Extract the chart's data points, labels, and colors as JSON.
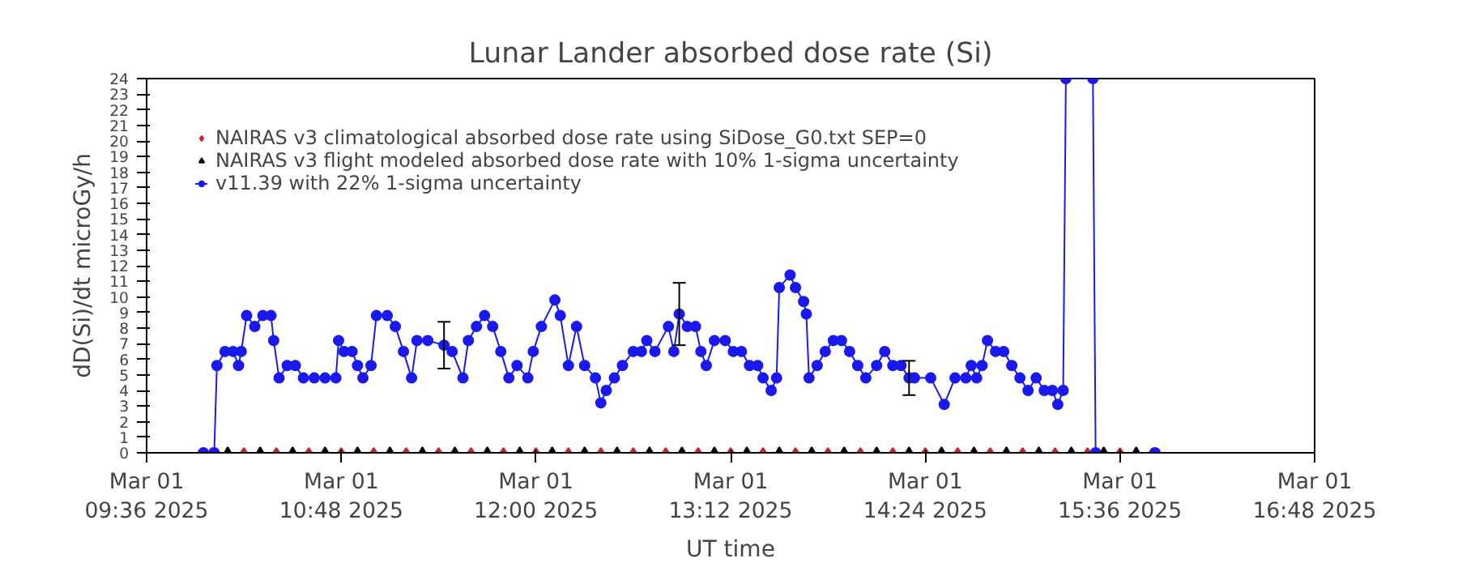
{
  "chart_data": {
    "type": "line",
    "title": "Lunar Lander absorbed dose rate (Si)",
    "xlabel": "UT time",
    "ylabel": "dD(Si)/dt microGy/h",
    "xlim": [
      "2025-03-01T09:36",
      "2025-03-01T16:48"
    ],
    "xticks": [
      {
        "value": "2025-03-01T09:36",
        "label": "Mar 01\n09:36 2025"
      },
      {
        "value": "2025-03-01T10:48",
        "label": "Mar 01\n10:48 2025"
      },
      {
        "value": "2025-03-01T12:00",
        "label": "Mar 01\n12:00 2025"
      },
      {
        "value": "2025-03-01T13:12",
        "label": "Mar 01\n13:12 2025"
      },
      {
        "value": "2025-03-01T14:24",
        "label": "Mar 01\n14:24 2025"
      },
      {
        "value": "2025-03-01T15:36",
        "label": "Mar 01\n15:36 2025"
      },
      {
        "value": "2025-03-01T16:48",
        "label": "Mar 01\n16:48 2025"
      }
    ],
    "ylim": [
      0,
      24
    ],
    "yticks": [
      0,
      1,
      2,
      3,
      4,
      5,
      6,
      7,
      8,
      9,
      10,
      11,
      12,
      13,
      14,
      15,
      16,
      17,
      18,
      19,
      20,
      21,
      22,
      23,
      24
    ],
    "grid": false,
    "legend": "top left",
    "line_style": "solid",
    "series": [
      {
        "name": "NAIRAS v3 climatological absorbed dose rate using SiDose_G0.txt SEP=0",
        "type": "scatter",
        "color": "#cc2222",
        "marker": "diamond",
        "x": [
          "2025-03-01T10:00",
          "2025-03-01T10:12",
          "2025-03-01T10:24",
          "2025-03-01T10:36",
          "2025-03-01T10:48",
          "2025-03-01T11:00",
          "2025-03-01T11:12",
          "2025-03-01T11:24",
          "2025-03-01T11:36",
          "2025-03-01T11:48",
          "2025-03-01T12:00",
          "2025-03-01T12:12",
          "2025-03-01T12:24",
          "2025-03-01T12:36",
          "2025-03-01T12:48",
          "2025-03-01T13:00",
          "2025-03-01T13:12",
          "2025-03-01T13:24",
          "2025-03-01T13:36",
          "2025-03-01T13:48",
          "2025-03-01T14:00",
          "2025-03-01T14:12",
          "2025-03-01T14:24",
          "2025-03-01T14:36",
          "2025-03-01T14:48",
          "2025-03-01T15:00",
          "2025-03-01T15:12",
          "2025-03-01T15:24",
          "2025-03-01T15:36",
          "2025-03-01T15:48"
        ],
        "values": [
          0,
          0,
          0,
          0,
          0,
          0,
          0,
          0,
          0,
          0,
          0,
          0,
          0,
          0,
          0,
          0,
          0,
          0,
          0,
          0,
          0,
          0,
          0,
          0,
          0,
          0,
          0,
          0,
          0,
          0
        ]
      },
      {
        "name": "NAIRAS v3 flight modeled absorbed dose rate with 10% 1-sigma uncertainty",
        "type": "scatter",
        "color": "#000000",
        "marker": "triangle",
        "x": [
          "2025-03-01T10:06",
          "2025-03-01T10:18",
          "2025-03-01T10:30",
          "2025-03-01T10:42",
          "2025-03-01T10:54",
          "2025-03-01T11:06",
          "2025-03-01T11:18",
          "2025-03-01T11:30",
          "2025-03-01T11:42",
          "2025-03-01T11:54",
          "2025-03-01T12:06",
          "2025-03-01T12:18",
          "2025-03-01T12:30",
          "2025-03-01T12:42",
          "2025-03-01T12:54",
          "2025-03-01T13:06",
          "2025-03-01T13:18",
          "2025-03-01T13:30",
          "2025-03-01T13:42",
          "2025-03-01T13:54",
          "2025-03-01T14:06",
          "2025-03-01T14:18",
          "2025-03-01T14:30",
          "2025-03-01T14:42",
          "2025-03-01T14:54",
          "2025-03-01T15:06",
          "2025-03-01T15:18",
          "2025-03-01T15:30",
          "2025-03-01T15:42"
        ],
        "values": [
          0,
          0,
          0,
          0,
          0,
          0,
          0,
          0,
          0,
          0,
          0,
          0,
          0,
          0,
          0,
          0,
          0,
          0,
          0,
          0,
          0,
          0,
          0,
          0,
          0,
          0,
          0,
          0,
          0
        ]
      },
      {
        "name": "v11.39 with 22% 1-sigma uncertainty",
        "color": "#1a1aee",
        "marker": "circle",
        "x": [
          "2025-03-01T09:57",
          "2025-03-01T10:01",
          "2025-03-01T10:02",
          "2025-03-01T10:05",
          "2025-03-01T10:08",
          "2025-03-01T10:10",
          "2025-03-01T10:11",
          "2025-03-01T10:13",
          "2025-03-01T10:16",
          "2025-03-01T10:19",
          "2025-03-01T10:22",
          "2025-03-01T10:23",
          "2025-03-01T10:25",
          "2025-03-01T10:28",
          "2025-03-01T10:31",
          "2025-03-01T10:34",
          "2025-03-01T10:38",
          "2025-03-01T10:42",
          "2025-03-01T10:46",
          "2025-03-01T10:47",
          "2025-03-01T10:49",
          "2025-03-01T10:52",
          "2025-03-01T10:54",
          "2025-03-01T10:56",
          "2025-03-01T10:59",
          "2025-03-01T11:01",
          "2025-03-01T11:05",
          "2025-03-01T11:08",
          "2025-03-01T11:11",
          "2025-03-01T11:14",
          "2025-03-01T11:16",
          "2025-03-01T11:20",
          "2025-03-01T11:26",
          "2025-03-01T11:29",
          "2025-03-01T11:33",
          "2025-03-01T11:35",
          "2025-03-01T11:38",
          "2025-03-01T11:41",
          "2025-03-01T11:44",
          "2025-03-01T11:47",
          "2025-03-01T11:50",
          "2025-03-01T11:53",
          "2025-03-01T11:57",
          "2025-03-01T11:59",
          "2025-03-01T12:02",
          "2025-03-01T12:07",
          "2025-03-01T12:09",
          "2025-03-01T12:12",
          "2025-03-01T12:15",
          "2025-03-01T12:18",
          "2025-03-01T12:22",
          "2025-03-01T12:24",
          "2025-03-01T12:26",
          "2025-03-01T12:29",
          "2025-03-01T12:32",
          "2025-03-01T12:36",
          "2025-03-01T12:39",
          "2025-03-01T12:41",
          "2025-03-01T12:44",
          "2025-03-01T12:49",
          "2025-03-01T12:51",
          "2025-03-01T12:53",
          "2025-03-01T12:56",
          "2025-03-01T12:59",
          "2025-03-01T13:01",
          "2025-03-01T13:03",
          "2025-03-01T13:06",
          "2025-03-01T13:10",
          "2025-03-01T13:13",
          "2025-03-01T13:16",
          "2025-03-01T13:19",
          "2025-03-01T13:22",
          "2025-03-01T13:24",
          "2025-03-01T13:27",
          "2025-03-01T13:29",
          "2025-03-01T13:30",
          "2025-03-01T13:34",
          "2025-03-01T13:36",
          "2025-03-01T13:39",
          "2025-03-01T13:40",
          "2025-03-01T13:41",
          "2025-03-01T13:44",
          "2025-03-01T13:47",
          "2025-03-01T13:50",
          "2025-03-01T13:53",
          "2025-03-01T13:56",
          "2025-03-01T13:59",
          "2025-03-01T14:02",
          "2025-03-01T14:06",
          "2025-03-01T14:09",
          "2025-03-01T14:12",
          "2025-03-01T14:15",
          "2025-03-01T14:18",
          "2025-03-01T14:20",
          "2025-03-01T14:26",
          "2025-03-01T14:31",
          "2025-03-01T14:35",
          "2025-03-01T14:39",
          "2025-03-01T14:41",
          "2025-03-01T14:43",
          "2025-03-01T14:45",
          "2025-03-01T14:47",
          "2025-03-01T14:50",
          "2025-03-01T14:53",
          "2025-03-01T14:56",
          "2025-03-01T14:59",
          "2025-03-01T15:02",
          "2025-03-01T15:05",
          "2025-03-01T15:08",
          "2025-03-01T15:11",
          "2025-03-01T15:13",
          "2025-03-01T15:15",
          "2025-03-01T15:16",
          "2025-03-01T15:26",
          "2025-03-01T15:27",
          "2025-03-01T15:49"
        ],
        "values": [
          0,
          0,
          5.6,
          6.5,
          6.5,
          5.6,
          6.5,
          8.8,
          8.1,
          8.8,
          8.8,
          7.2,
          4.8,
          5.6,
          5.6,
          4.8,
          4.8,
          4.8,
          4.8,
          7.2,
          6.5,
          6.5,
          5.6,
          4.8,
          5.6,
          8.8,
          8.8,
          8.1,
          6.5,
          4.8,
          7.2,
          7.2,
          6.9,
          6.5,
          4.8,
          7.2,
          8.1,
          8.8,
          8.1,
          6.5,
          4.8,
          5.6,
          4.8,
          6.5,
          8.1,
          9.8,
          8.8,
          5.6,
          8.1,
          5.6,
          4.8,
          3.2,
          4.0,
          4.8,
          5.6,
          6.5,
          6.5,
          7.2,
          6.5,
          8.1,
          6.5,
          8.9,
          8.1,
          8.1,
          6.5,
          5.6,
          7.2,
          7.2,
          6.5,
          6.5,
          5.6,
          5.6,
          4.8,
          4.0,
          4.8,
          10.6,
          11.4,
          10.6,
          9.7,
          8.9,
          4.8,
          5.6,
          6.5,
          7.2,
          7.2,
          6.5,
          5.6,
          4.8,
          5.6,
          6.5,
          5.6,
          5.6,
          4.8,
          4.8,
          4.8,
          3.1,
          4.8,
          4.8,
          5.6,
          4.8,
          5.6,
          7.2,
          6.5,
          6.5,
          5.6,
          4.8,
          4.0,
          4.8,
          4.0,
          4.0,
          3.1,
          4.0,
          24,
          24,
          0,
          0
        ],
        "errors": [
          null,
          null,
          null,
          null,
          null,
          null,
          null,
          null,
          null,
          null,
          null,
          null,
          null,
          null,
          null,
          null,
          null,
          null,
          null,
          null,
          null,
          null,
          null,
          null,
          null,
          null,
          null,
          null,
          null,
          null,
          null,
          null,
          1.5,
          null,
          null,
          null,
          null,
          null,
          null,
          null,
          null,
          null,
          null,
          null,
          null,
          null,
          null,
          null,
          null,
          null,
          null,
          null,
          null,
          null,
          null,
          null,
          null,
          null,
          null,
          null,
          null,
          2.0,
          null,
          null,
          null,
          null,
          null,
          null,
          null,
          null,
          null,
          null,
          null,
          null,
          null,
          null,
          null,
          null,
          null,
          null,
          null,
          null,
          null,
          null,
          null,
          null,
          null,
          null,
          null,
          null,
          null,
          null,
          1.1,
          null,
          null,
          null,
          null,
          null,
          null,
          null,
          null,
          null,
          null,
          null,
          null,
          null,
          null,
          null,
          null,
          null,
          null,
          null,
          null,
          null,
          null,
          null
        ]
      }
    ]
  }
}
